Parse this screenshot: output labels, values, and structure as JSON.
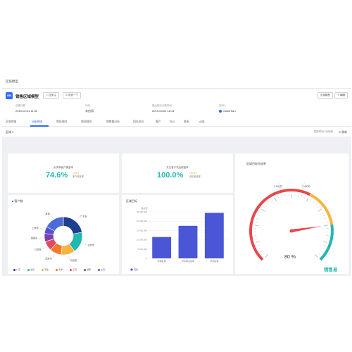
{
  "titlebar": {
    "title": "区域模型"
  },
  "header": {
    "logo_text": "RB",
    "title": "销售区域模型",
    "follow_label": "加关注",
    "share_label": "说说一下",
    "apply_label": "应用模型",
    "edit_label": "编辑",
    "meta": [
      {
        "label": "创建日期",
        "value": "2019-02-24 11:00"
      },
      {
        "label": "状态",
        "value": "未启用"
      },
      {
        "label": "最近被应分配时间",
        "value": "2019-03-01 18:41"
      },
      {
        "label": "所有人",
        "value": "JustinTian"
      }
    ]
  },
  "tabs": [
    "区域地域",
    "分配规则",
    "审批规则",
    "预测规则",
    "销售额分析",
    "团队成员",
    "客户",
    "办公",
    "联系",
    "动态"
  ],
  "filterbar": {
    "left": "区域",
    "right": "更新时间 2分钟前",
    "refresh": "刷新"
  },
  "kpi1": {
    "label": "负责单客户覆盖率",
    "value": "74.6%",
    "side_value": "74.6%",
    "side_label": "客户覆盖率"
  },
  "kpi2": {
    "label": "关注客户机会覆盖率",
    "value": "100.0%",
    "side_value": "100.0%",
    "side_label": "商机覆盖率"
  },
  "donut": {
    "title": "客户数",
    "slices": [
      {
        "label": "广东省",
        "value": 22,
        "color": "#1e3f8f"
      },
      {
        "label": "北京市",
        "value": 18,
        "color": "#21b8b0"
      },
      {
        "label": "河北省",
        "value": 12,
        "color": "#f6b440"
      },
      {
        "label": "天津市",
        "value": 10,
        "color": "#f07a2e"
      },
      {
        "label": "江苏省",
        "value": 8,
        "color": "#e14a63"
      },
      {
        "label": "湖南省",
        "value": 7,
        "color": "#7b3fa8"
      },
      {
        "label": "上海市",
        "value": 6,
        "color": "#5a4fcf"
      },
      {
        "label": "其他",
        "value": 17,
        "color": "#4b6bd8"
      }
    ],
    "legend": [
      "广东",
      "北京",
      "河北",
      "天津",
      "江苏",
      "湖南",
      "上海"
    ]
  },
  "chart_data": {
    "type": "bar",
    "title": "区域目标",
    "ylabel": "目标值",
    "categories": [
      "华南区域",
      "华东重点区域",
      "华北区域"
    ],
    "series": [
      {
        "name": "目标",
        "values": [
          11500000,
          17500000,
          24500000
        ]
      }
    ],
    "yticks": [
      "0",
      "5,000,000",
      "10,000,000",
      "15,000,000",
      "20,000,000",
      "25,000,000"
    ],
    "ylim": [
      0,
      25000000
    ],
    "bar_color": "#4a56d6",
    "legend": "bottom-left"
  },
  "gauge": {
    "title": "区域目标完成率",
    "label_left": "2,000万",
    "label_right": "2,400万",
    "percent_text": "80 %",
    "percent": 80,
    "brand": "销售易"
  }
}
